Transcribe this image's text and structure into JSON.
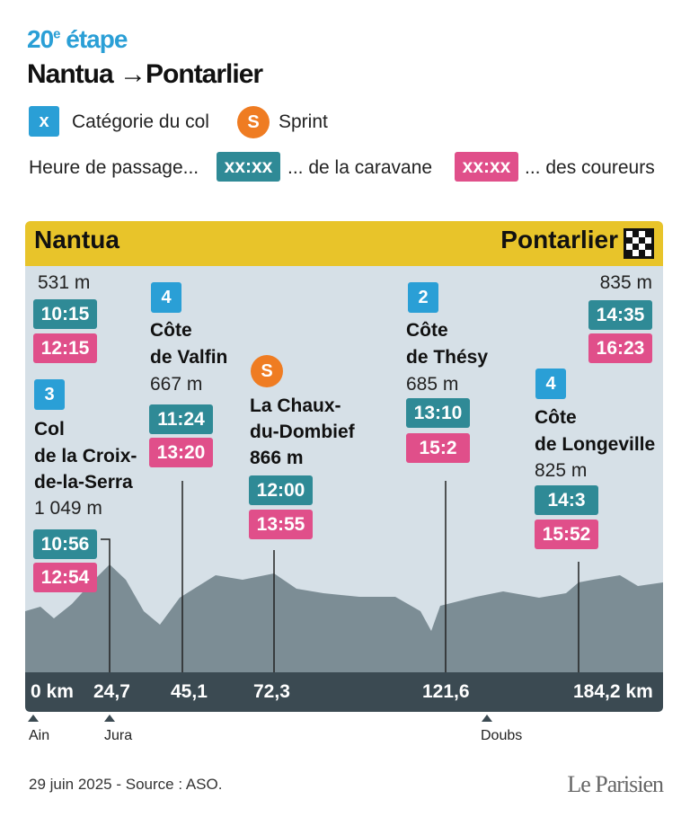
{
  "header": {
    "stage_number": "20",
    "stage_suffix": "e",
    "stage_word": "étape",
    "route_start": "Nantua",
    "arrow": "→",
    "route_end": "Pontarlier"
  },
  "legend": {
    "category_badge": "x",
    "category_label": "Catégorie du col",
    "sprint_badge": "S",
    "sprint_label": "Sprint",
    "passage_label": "Heure de passage...",
    "caravan_badge": "xx:xx",
    "caravan_label": "... de la caravane",
    "riders_badge": "xx:xx",
    "riders_label": "... des coureurs"
  },
  "profile": {
    "start": "Nantua",
    "finish": "Pontarlier",
    "points": [
      {
        "altitude": "531 m",
        "caravan": "10:15",
        "riders": "12:15"
      },
      {
        "category": "3",
        "name": [
          "Col",
          "de la Croix-",
          "de-la-Serra"
        ],
        "altitude": "1 049 m",
        "caravan": "10:56",
        "riders": "12:54"
      },
      {
        "category": "4",
        "name": [
          "Côte",
          "de Valfin"
        ],
        "altitude": "667 m",
        "caravan": "11:24",
        "riders": "13:20"
      },
      {
        "sprint": "S",
        "name": [
          "La Chaux-",
          "du-Dombief"
        ],
        "altitude": "866 m",
        "caravan": "12:00",
        "riders": "13:55"
      },
      {
        "category": "2",
        "name": [
          "Côte",
          "de Thésy"
        ],
        "altitude": "685 m",
        "caravan": "13:10",
        "riders": "15:2"
      },
      {
        "category": "4",
        "name": [
          "Côte",
          "de Longeville"
        ],
        "altitude": "825 m",
        "caravan": "14:3",
        "riders": "15:52"
      },
      {
        "altitude": "835 m",
        "caravan": "14:35",
        "riders": "16:23"
      }
    ],
    "distances": [
      "0 km",
      "24,7",
      "45,1",
      "72,3",
      "121,6",
      "184,2 km"
    ],
    "regions": [
      "Ain",
      "Jura",
      "Doubs"
    ]
  },
  "footer": {
    "source": "29 juin 2025 - Source : ASO.",
    "brand": "Le Parisien"
  }
}
